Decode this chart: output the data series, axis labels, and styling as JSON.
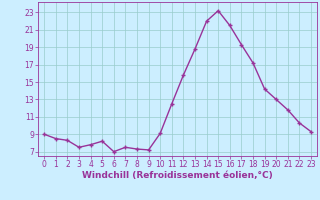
{
  "x": [
    0,
    1,
    2,
    3,
    4,
    5,
    6,
    7,
    8,
    9,
    10,
    11,
    12,
    13,
    14,
    15,
    16,
    17,
    18,
    19,
    20,
    21,
    22,
    23
  ],
  "y": [
    9.0,
    8.5,
    8.3,
    7.5,
    7.8,
    8.2,
    7.0,
    7.5,
    7.3,
    7.2,
    9.1,
    12.5,
    15.8,
    18.8,
    22.0,
    23.2,
    21.5,
    19.3,
    17.2,
    14.2,
    13.0,
    11.8,
    10.3,
    9.3
  ],
  "line_color": "#993399",
  "marker": "+",
  "marker_size": 3,
  "bg_color": "#cceeff",
  "grid_color": "#99cccc",
  "xlabel": "Windchill (Refroidissement éolien,°C)",
  "xlim": [
    -0.5,
    23.5
  ],
  "ylim": [
    6.5,
    24.2
  ],
  "yticks": [
    7,
    9,
    11,
    13,
    15,
    17,
    19,
    21,
    23
  ],
  "xticks": [
    0,
    1,
    2,
    3,
    4,
    5,
    6,
    7,
    8,
    9,
    10,
    11,
    12,
    13,
    14,
    15,
    16,
    17,
    18,
    19,
    20,
    21,
    22,
    23
  ],
  "tick_fontsize": 5.5,
  "xlabel_fontsize": 6.5,
  "line_width": 1.0,
  "marker_edge_width": 1.0
}
